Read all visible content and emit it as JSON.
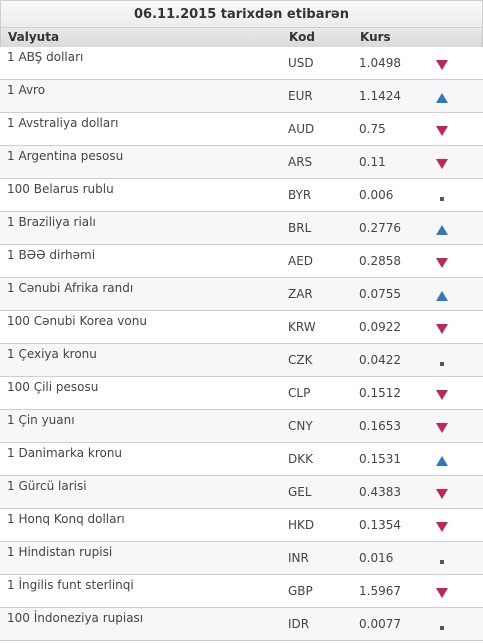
{
  "title": "06.11.2015 tarixdən etibarən",
  "headers": {
    "currency": "Valyuta",
    "code": "Kod",
    "rate": "Kurs"
  },
  "colors": {
    "down": "#c0265a",
    "up": "#2e78c4",
    "flat": "#555555"
  },
  "rows": [
    {
      "name": "1 ABŞ dolları",
      "code": "USD",
      "rate": "1.0498",
      "trend": "down"
    },
    {
      "name": "1 Avro",
      "code": "EUR",
      "rate": "1.1424",
      "trend": "up"
    },
    {
      "name": "1 Avstraliya dolları",
      "code": "AUD",
      "rate": "0.75",
      "trend": "down"
    },
    {
      "name": "1 Argentina pesosu",
      "code": "ARS",
      "rate": "0.11",
      "trend": "down"
    },
    {
      "name": "100 Belarus rublu",
      "code": "BYR",
      "rate": "0.006",
      "trend": "flat"
    },
    {
      "name": "1 Braziliya rialı",
      "code": "BRL",
      "rate": "0.2776",
      "trend": "up"
    },
    {
      "name": "1 BƏƏ dirhəmi",
      "code": "AED",
      "rate": "0.2858",
      "trend": "down"
    },
    {
      "name": "1 Cənubi Afrika randı",
      "code": "ZAR",
      "rate": "0.0755",
      "trend": "up"
    },
    {
      "name": "100 Cənubi Korea vonu",
      "code": "KRW",
      "rate": "0.0922",
      "trend": "down"
    },
    {
      "name": "1 Çexiya kronu",
      "code": "CZK",
      "rate": "0.0422",
      "trend": "flat"
    },
    {
      "name": "100 Çili pesosu",
      "code": "CLP",
      "rate": "0.1512",
      "trend": "down"
    },
    {
      "name": "1 Çin yuanı",
      "code": "CNY",
      "rate": "0.1653",
      "trend": "down"
    },
    {
      "name": "1 Danimarka kronu",
      "code": "DKK",
      "rate": "0.1531",
      "trend": "up"
    },
    {
      "name": "1 Gürcü larisi",
      "code": "GEL",
      "rate": "0.4383",
      "trend": "down"
    },
    {
      "name": "1 Honq Konq dolları",
      "code": "HKD",
      "rate": "0.1354",
      "trend": "down"
    },
    {
      "name": "1 Hindistan rupisi",
      "code": "INR",
      "rate": "0.016",
      "trend": "flat"
    },
    {
      "name": "1 İngilis funt sterlinqi",
      "code": "GBP",
      "rate": "1.5967",
      "trend": "down"
    },
    {
      "name": "100 İndoneziya rupiası",
      "code": "IDR",
      "rate": "0.0077",
      "trend": "flat"
    }
  ]
}
